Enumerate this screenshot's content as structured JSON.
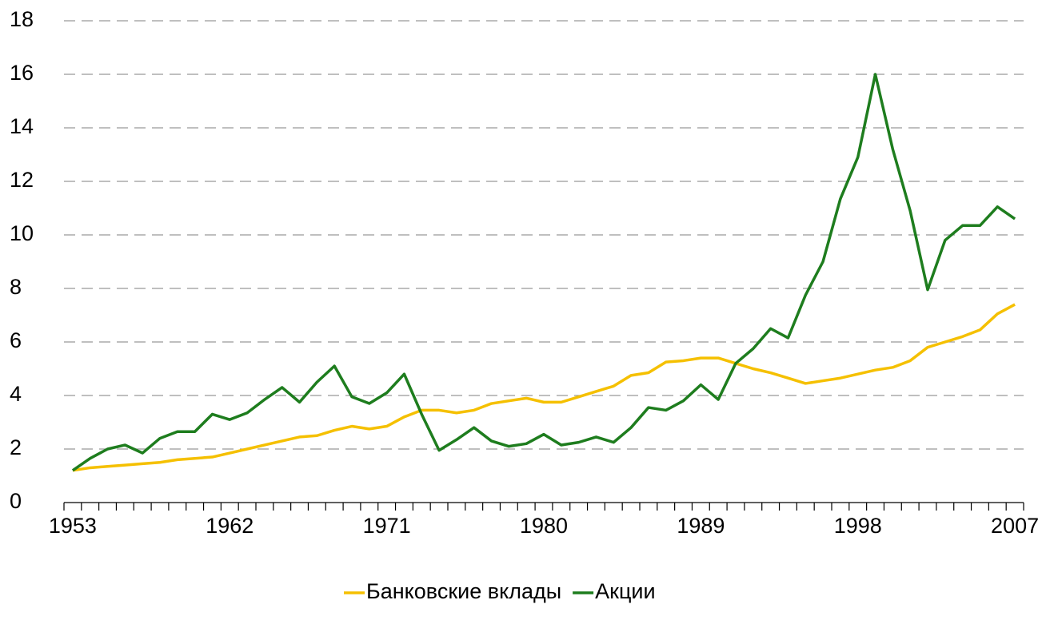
{
  "chart_data": {
    "type": "line",
    "x": [
      1953,
      1954,
      1955,
      1956,
      1957,
      1958,
      1959,
      1960,
      1961,
      1962,
      1963,
      1964,
      1965,
      1966,
      1967,
      1968,
      1969,
      1970,
      1971,
      1972,
      1973,
      1974,
      1975,
      1976,
      1977,
      1978,
      1979,
      1980,
      1981,
      1982,
      1983,
      1984,
      1985,
      1986,
      1987,
      1988,
      1989,
      1990,
      1991,
      1992,
      1993,
      1994,
      1995,
      1996,
      1997,
      1998,
      1999,
      2000,
      2001,
      2002,
      2003,
      2004,
      2005,
      2006,
      2007
    ],
    "xticks": [
      1953,
      1962,
      1971,
      1980,
      1989,
      1998,
      2007
    ],
    "ylim": [
      0,
      18
    ],
    "yticks": [
      0,
      2,
      4,
      6,
      8,
      10,
      12,
      14,
      16,
      18
    ],
    "grid": true,
    "series": [
      {
        "name": "Банковские вклады",
        "color": "#f5c000",
        "values": [
          1.2,
          1.3,
          1.35,
          1.4,
          1.45,
          1.5,
          1.6,
          1.65,
          1.7,
          1.85,
          2.0,
          2.15,
          2.3,
          2.45,
          2.5,
          2.7,
          2.85,
          2.75,
          2.85,
          3.2,
          3.45,
          3.45,
          3.35,
          3.45,
          3.7,
          3.8,
          3.9,
          3.75,
          3.75,
          3.95,
          4.15,
          4.35,
          4.75,
          4.85,
          5.25,
          5.3,
          5.4,
          5.4,
          5.2,
          5.0,
          4.85,
          4.65,
          4.45,
          4.55,
          4.65,
          4.8,
          4.95,
          5.05,
          5.3,
          5.8,
          6.0,
          6.2,
          6.45,
          7.05,
          7.4
        ]
      },
      {
        "name": "Акции",
        "color": "#1e7d1e",
        "values": [
          1.2,
          1.65,
          2.0,
          2.15,
          1.85,
          2.4,
          2.65,
          2.65,
          3.3,
          3.1,
          3.35,
          3.85,
          4.3,
          3.75,
          4.5,
          5.1,
          3.95,
          3.7,
          4.1,
          4.8,
          3.3,
          1.95,
          2.35,
          2.8,
          2.3,
          2.1,
          2.2,
          2.55,
          2.15,
          2.25,
          2.45,
          2.25,
          2.8,
          3.55,
          3.45,
          3.8,
          4.4,
          3.85,
          5.2,
          5.75,
          6.5,
          6.15,
          7.75,
          9.0,
          11.35,
          12.9,
          16.0,
          13.2,
          10.9,
          7.95,
          9.8,
          10.35,
          10.35,
          11.05,
          10.6
        ]
      }
    ]
  }
}
